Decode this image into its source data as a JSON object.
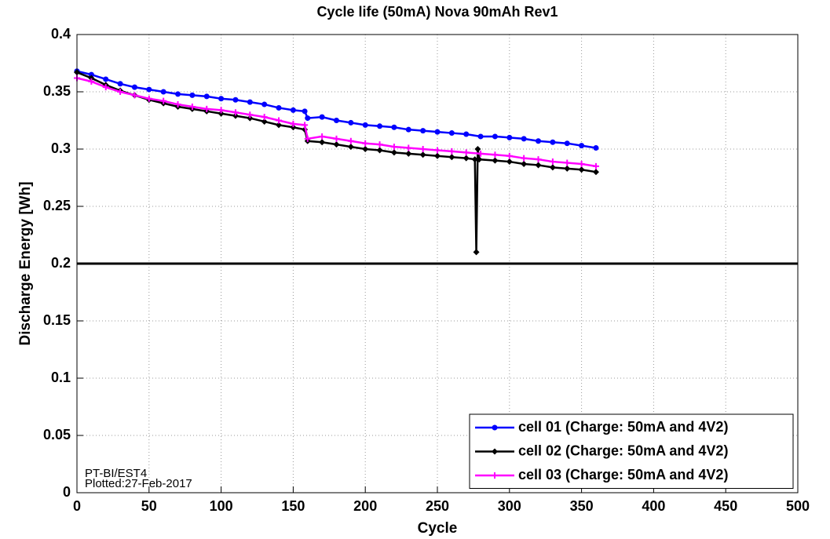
{
  "chart_data": {
    "type": "line",
    "title": "Cycle life (50mA) Nova 90mAh Rev1",
    "xlabel": "Cycle",
    "ylabel": "Discharge Energy [Wh]",
    "annotations": [
      "PT-BI/EST4",
      "Plotted:27-Feb-2017"
    ],
    "xlim": [
      0,
      500
    ],
    "xticks": [
      0,
      50,
      100,
      150,
      200,
      250,
      300,
      350,
      400,
      450,
      500
    ],
    "ylim": [
      0,
      0.4
    ],
    "yticks": [
      {
        "value": 0,
        "label": "0"
      },
      0.05,
      0.1,
      0.15,
      0.2,
      0.25,
      0.3,
      0.35,
      0.4
    ],
    "grid": true,
    "legend": "lower right",
    "hline": 0.2,
    "series": [
      {
        "name": "cell 01 (Charge: 50mA and 4V2)",
        "color": "#0000ff",
        "marker": "circle",
        "x": [
          0,
          10,
          20,
          30,
          40,
          50,
          60,
          70,
          80,
          90,
          100,
          110,
          120,
          130,
          140,
          150,
          158,
          160,
          170,
          180,
          190,
          200,
          210,
          220,
          230,
          240,
          250,
          260,
          270,
          280,
          290,
          300,
          310,
          320,
          330,
          340,
          350,
          360
        ],
        "values": [
          0.368,
          0.365,
          0.361,
          0.357,
          0.354,
          0.352,
          0.35,
          0.348,
          0.347,
          0.346,
          0.344,
          0.343,
          0.341,
          0.339,
          0.336,
          0.334,
          0.333,
          0.327,
          0.328,
          0.325,
          0.323,
          0.321,
          0.32,
          0.319,
          0.317,
          0.316,
          0.315,
          0.314,
          0.313,
          0.311,
          0.311,
          0.31,
          0.309,
          0.307,
          0.306,
          0.305,
          0.303,
          0.301
        ]
      },
      {
        "name": "cell 02 (Charge: 50mA and 4V2)",
        "color": "#000000",
        "marker": "diamond",
        "x": [
          0,
          10,
          20,
          30,
          40,
          50,
          60,
          70,
          80,
          90,
          100,
          110,
          120,
          130,
          140,
          150,
          158,
          160,
          170,
          180,
          190,
          200,
          210,
          220,
          230,
          240,
          250,
          260,
          270,
          276,
          277,
          278,
          279,
          290,
          300,
          310,
          320,
          330,
          340,
          350,
          360
        ],
        "values": [
          0.367,
          0.362,
          0.356,
          0.351,
          0.347,
          0.343,
          0.34,
          0.337,
          0.335,
          0.333,
          0.331,
          0.329,
          0.327,
          0.324,
          0.321,
          0.319,
          0.317,
          0.307,
          0.306,
          0.304,
          0.302,
          0.3,
          0.299,
          0.297,
          0.296,
          0.295,
          0.294,
          0.293,
          0.292,
          0.291,
          0.21,
          0.3,
          0.291,
          0.29,
          0.289,
          0.287,
          0.286,
          0.284,
          0.283,
          0.282,
          0.28
        ]
      },
      {
        "name": "cell 03 (Charge: 50mA and 4V2)",
        "color": "#ff00ff",
        "marker": "plus",
        "x": [
          0,
          10,
          20,
          30,
          40,
          50,
          60,
          70,
          80,
          90,
          100,
          110,
          120,
          130,
          140,
          150,
          158,
          160,
          170,
          180,
          190,
          200,
          210,
          220,
          230,
          240,
          250,
          260,
          270,
          280,
          290,
          300,
          310,
          320,
          330,
          340,
          350,
          360
        ],
        "values": [
          0.362,
          0.359,
          0.354,
          0.35,
          0.347,
          0.344,
          0.342,
          0.339,
          0.337,
          0.335,
          0.334,
          0.332,
          0.33,
          0.328,
          0.325,
          0.322,
          0.321,
          0.309,
          0.311,
          0.309,
          0.307,
          0.305,
          0.304,
          0.302,
          0.301,
          0.3,
          0.299,
          0.298,
          0.297,
          0.296,
          0.295,
          0.294,
          0.292,
          0.291,
          0.289,
          0.288,
          0.287,
          0.285
        ]
      }
    ]
  }
}
